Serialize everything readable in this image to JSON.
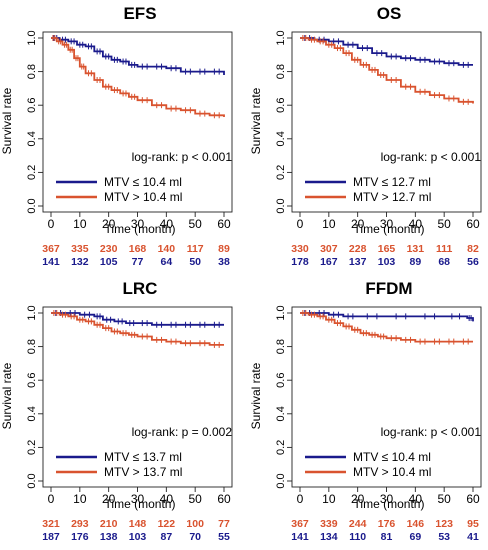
{
  "colors": {
    "low_mtv": "#1a1a8c",
    "high_mtv": "#d9532f",
    "axis": "#222222"
  },
  "chart_data": [
    {
      "type": "line",
      "title": "EFS",
      "xlabel": "Time (month)",
      "ylabel": "Survival rate",
      "xlim": [
        0,
        60
      ],
      "ylim": [
        0,
        1
      ],
      "x_ticks": [
        0,
        10,
        20,
        30,
        40,
        50,
        60
      ],
      "y_ticks": [
        "0.0",
        "0.2",
        "0.4",
        "0.6",
        "0.8",
        "1.0"
      ],
      "annotation": "log-rank: p < 0.001",
      "legend_position": "bottom-left",
      "series": [
        {
          "name": "MTV ≤ 10.4 ml",
          "color": "#1a1a8c",
          "x": [
            0,
            3,
            6,
            9,
            12,
            15,
            18,
            21,
            24,
            27,
            30,
            35,
            40,
            45,
            50,
            55,
            60
          ],
          "y": [
            1.0,
            0.99,
            0.98,
            0.96,
            0.95,
            0.92,
            0.89,
            0.87,
            0.86,
            0.84,
            0.83,
            0.83,
            0.82,
            0.8,
            0.8,
            0.8,
            0.78
          ],
          "at_risk": [
            "141",
            "132",
            "105",
            "77",
            "64",
            "50",
            "38"
          ]
        },
        {
          "name": "MTV > 10.4 ml",
          "color": "#d9532f",
          "x": [
            0,
            2,
            4,
            6,
            8,
            10,
            12,
            15,
            18,
            21,
            24,
            27,
            30,
            35,
            40,
            45,
            50,
            55,
            60
          ],
          "y": [
            1.0,
            0.98,
            0.96,
            0.93,
            0.88,
            0.83,
            0.79,
            0.75,
            0.71,
            0.69,
            0.67,
            0.65,
            0.63,
            0.6,
            0.58,
            0.57,
            0.55,
            0.54,
            0.53
          ],
          "at_risk": [
            "367",
            "335",
            "230",
            "168",
            "140",
            "117",
            "89"
          ]
        }
      ]
    },
    {
      "type": "line",
      "title": "OS",
      "xlabel": "Time (month)",
      "ylabel": "Survival rate",
      "xlim": [
        0,
        60
      ],
      "ylim": [
        0,
        1
      ],
      "x_ticks": [
        0,
        10,
        20,
        30,
        40,
        50,
        60
      ],
      "y_ticks": [
        "0.0",
        "0.2",
        "0.4",
        "0.6",
        "0.8",
        "1.0"
      ],
      "annotation": "log-rank: p < 0.001",
      "legend_position": "bottom-left",
      "series": [
        {
          "name": "MTV ≤ 12.7 ml",
          "color": "#1a1a8c",
          "x": [
            0,
            5,
            10,
            15,
            20,
            25,
            30,
            35,
            40,
            45,
            50,
            55,
            60
          ],
          "y": [
            1.0,
            0.99,
            0.98,
            0.96,
            0.94,
            0.91,
            0.89,
            0.88,
            0.87,
            0.86,
            0.85,
            0.84,
            0.84
          ],
          "at_risk": [
            "178",
            "167",
            "137",
            "103",
            "89",
            "68",
            "56"
          ]
        },
        {
          "name": "MTV > 12.7 ml",
          "color": "#d9532f",
          "x": [
            0,
            3,
            6,
            9,
            12,
            15,
            18,
            21,
            24,
            27,
            30,
            35,
            40,
            45,
            50,
            55,
            60
          ],
          "y": [
            1.0,
            0.99,
            0.98,
            0.96,
            0.94,
            0.91,
            0.87,
            0.84,
            0.81,
            0.78,
            0.75,
            0.71,
            0.68,
            0.66,
            0.64,
            0.62,
            0.61
          ],
          "at_risk": [
            "330",
            "307",
            "228",
            "165",
            "131",
            "111",
            "82"
          ]
        }
      ]
    },
    {
      "type": "line",
      "title": "LRC",
      "xlabel": "Time (month)",
      "ylabel": "Survival rate",
      "xlim": [
        0,
        60
      ],
      "ylim": [
        0,
        1
      ],
      "x_ticks": [
        0,
        10,
        20,
        30,
        40,
        50,
        60
      ],
      "y_ticks": [
        "0.0",
        "0.2",
        "0.4",
        "0.6",
        "0.8",
        "1.0"
      ],
      "annotation": "log-rank: p = 0.002",
      "legend_position": "bottom-left",
      "series": [
        {
          "name": "MTV ≤ 13.7 ml",
          "color": "#1a1a8c",
          "x": [
            0,
            5,
            10,
            15,
            18,
            22,
            26,
            30,
            35,
            40,
            45,
            50,
            55,
            60
          ],
          "y": [
            1.0,
            1.0,
            0.99,
            0.98,
            0.96,
            0.95,
            0.94,
            0.94,
            0.93,
            0.93,
            0.93,
            0.93,
            0.93,
            0.93
          ],
          "at_risk": [
            "187",
            "176",
            "138",
            "103",
            "87",
            "70",
            "55"
          ]
        },
        {
          "name": "MTV > 13.7 ml",
          "color": "#d9532f",
          "x": [
            0,
            3,
            6,
            9,
            12,
            15,
            18,
            21,
            24,
            27,
            30,
            35,
            40,
            45,
            50,
            55,
            60
          ],
          "y": [
            1.0,
            0.99,
            0.98,
            0.96,
            0.95,
            0.93,
            0.91,
            0.89,
            0.88,
            0.87,
            0.86,
            0.84,
            0.83,
            0.82,
            0.82,
            0.81,
            0.81
          ],
          "at_risk": [
            "321",
            "293",
            "210",
            "148",
            "122",
            "100",
            "77"
          ]
        }
      ]
    },
    {
      "type": "line",
      "title": "FFDM",
      "xlabel": "Time (month)",
      "ylabel": "Survival rate",
      "xlim": [
        0,
        60
      ],
      "ylim": [
        0,
        1
      ],
      "x_ticks": [
        0,
        10,
        20,
        30,
        40,
        50,
        60
      ],
      "y_ticks": [
        "0.0",
        "0.2",
        "0.4",
        "0.6",
        "0.8",
        "1.0"
      ],
      "annotation": "log-rank: p < 0.001",
      "legend_position": "bottom-left",
      "series": [
        {
          "name": "MTV ≤ 10.4 ml",
          "color": "#1a1a8c",
          "x": [
            0,
            5,
            10,
            15,
            20,
            30,
            40,
            50,
            58,
            60
          ],
          "y": [
            1.0,
            1.0,
            0.99,
            0.98,
            0.98,
            0.98,
            0.98,
            0.98,
            0.97,
            0.95
          ],
          "at_risk": [
            "141",
            "134",
            "110",
            "81",
            "69",
            "53",
            "41"
          ]
        },
        {
          "name": "MTV > 10.4 ml",
          "color": "#d9532f",
          "x": [
            0,
            3,
            6,
            9,
            12,
            15,
            18,
            21,
            24,
            27,
            30,
            35,
            40,
            45,
            50,
            55,
            60
          ],
          "y": [
            1.0,
            0.99,
            0.98,
            0.96,
            0.94,
            0.92,
            0.9,
            0.88,
            0.87,
            0.86,
            0.85,
            0.84,
            0.83,
            0.83,
            0.83,
            0.83,
            0.83
          ],
          "at_risk": [
            "367",
            "339",
            "244",
            "176",
            "146",
            "123",
            "95"
          ]
        }
      ]
    }
  ]
}
